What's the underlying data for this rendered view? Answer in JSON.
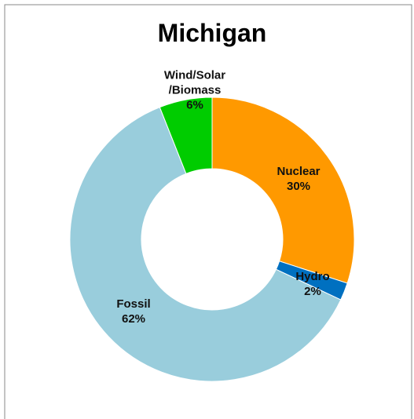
{
  "chart_data": {
    "type": "donut",
    "title": "Michigan",
    "categories": [
      "Nuclear",
      "Hydro",
      "Fossil",
      "Wind/Solar\n/Biomass"
    ],
    "values": [
      30,
      2,
      62,
      6
    ],
    "value_labels": [
      "30%",
      "2%",
      "62%",
      "6%"
    ],
    "colors": [
      "#ff9900",
      "#0070c0",
      "#99cddc",
      "#00cc00"
    ]
  }
}
